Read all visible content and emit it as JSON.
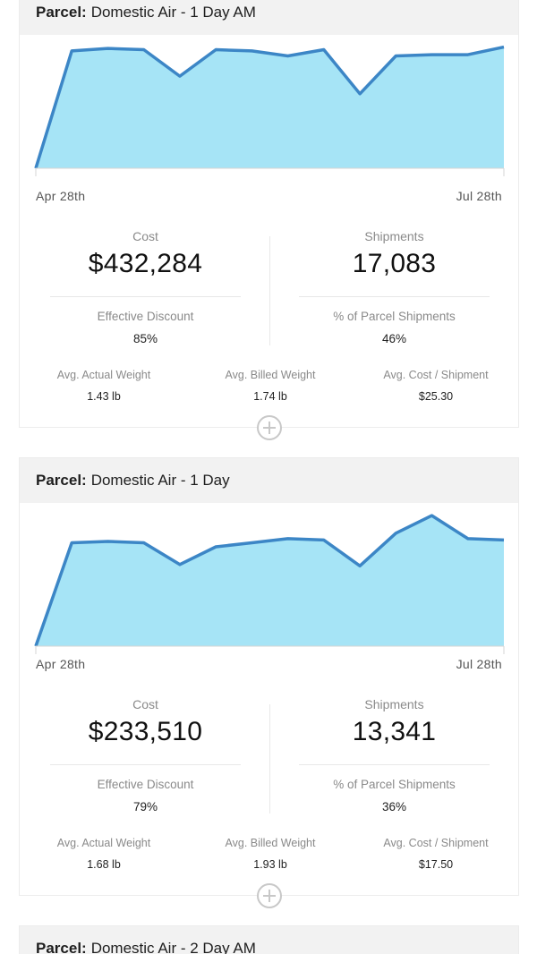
{
  "colors": {
    "fill": "#a6e4f6",
    "line": "#3c86c6",
    "header_bg": "#f2f2f2"
  },
  "cards": [
    {
      "kind": "Parcel:",
      "service": "Domestic Air - 1 Day AM",
      "x_start_label": "Apr 28th",
      "x_end_label": "Jul 28th",
      "cost_label": "Cost",
      "cost_value": "$432,284",
      "shipments_label": "Shipments",
      "shipments_value": "17,083",
      "discount_label": "Effective Discount",
      "discount_value": "85%",
      "pct_label": "% of Parcel Shipments",
      "pct_value": "46%",
      "actual_weight_label": "Avg. Actual Weight",
      "actual_weight_value": "1.43 lb",
      "billed_weight_label": "Avg. Billed Weight",
      "billed_weight_value": "1.74 lb",
      "cost_per_label": "Avg. Cost / Shipment",
      "cost_per_value": "$25.30",
      "trend": [
        0,
        0.93,
        0.95,
        0.94,
        0.73,
        0.94,
        0.93,
        0.89,
        0.94,
        0.59,
        0.89,
        0.9,
        0.9,
        0.96
      ]
    },
    {
      "kind": "Parcel:",
      "service": "Domestic Air - 1 Day",
      "x_start_label": "Apr 28th",
      "x_end_label": "Jul 28th",
      "cost_label": "Cost",
      "cost_value": "$233,510",
      "shipments_label": "Shipments",
      "shipments_value": "13,341",
      "discount_label": "Effective Discount",
      "discount_value": "79%",
      "pct_label": "% of Parcel Shipments",
      "pct_value": "36%",
      "actual_weight_label": "Avg. Actual Weight",
      "actual_weight_value": "1.68 lb",
      "billed_weight_label": "Avg. Billed Weight",
      "billed_weight_value": "1.93 lb",
      "cost_per_label": "Avg. Cost / Shipment",
      "cost_per_value": "$17.50",
      "trend": [
        0,
        0.76,
        0.77,
        0.76,
        0.6,
        0.73,
        0.76,
        0.79,
        0.78,
        0.59,
        0.83,
        0.96,
        0.79,
        0.78
      ]
    },
    {
      "kind": "Parcel:",
      "service": "Domestic Air - 2 Day AM"
    }
  ]
}
